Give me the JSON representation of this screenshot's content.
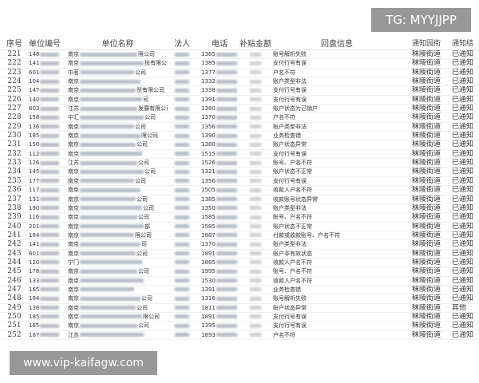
{
  "watermarks": {
    "tg": "TG: MYYJJPP",
    "site": "www.vip-kaifagw.com"
  },
  "headers": {
    "seq": "序号",
    "code": "单位编号",
    "name": "单位名称",
    "rep": "法人",
    "phone": "电话",
    "amount": "补贴金额",
    "info": "回盘信息",
    "street": "通知园街",
    "result": "通知结"
  },
  "rows": [
    {
      "seq": "221",
      "code": "148",
      "name_prefix": "南京",
      "name_suffix": "限公司",
      "phone": "1385",
      "info": "账号解析失败",
      "street": "秣陵街道",
      "result": "已通知"
    },
    {
      "seq": "222",
      "code": "141",
      "name_prefix": "南京",
      "name_suffix": "技有限公司",
      "phone": "1385",
      "info": "支付行号有误",
      "street": "秣陵街道",
      "result": "已通知"
    },
    {
      "seq": "223",
      "code": "601",
      "name_prefix": "中茗",
      "name_suffix": "公司",
      "phone": "1377",
      "info": "户名不符",
      "street": "秣陵街道",
      "result": "已通知"
    },
    {
      "seq": "224",
      "code": "104",
      "name_prefix": "南京",
      "name_suffix": "",
      "phone": "1332",
      "info": "账户类型非法",
      "street": "秣陵街道",
      "result": "已通知"
    },
    {
      "seq": "225",
      "code": "147",
      "name_prefix": "南京",
      "name_suffix": "贸有限公司",
      "phone": "1338",
      "info": "支付行号有误",
      "street": "秣陵街道",
      "result": "已通知"
    },
    {
      "seq": "226",
      "code": "140",
      "name_prefix": "南京",
      "name_suffix": "司",
      "phone": "1391",
      "info": "支付行号有误",
      "street": "秣陵街道",
      "result": "已通知"
    },
    {
      "seq": "227",
      "code": "603",
      "name_prefix": "江苏",
      "name_suffix": "发展有限公司",
      "phone": "1380",
      "info": "账户状态为已销户",
      "street": "秣陵街道",
      "result": "已通知"
    },
    {
      "seq": "228",
      "code": "158",
      "name_prefix": "中汇",
      "name_suffix": "公司",
      "phone": "1370",
      "info": "户名不符",
      "street": "秣陵街道",
      "result": "已通知"
    },
    {
      "seq": "229",
      "code": "136",
      "name_prefix": "南京",
      "name_suffix": "公司",
      "phone": "1356",
      "info": "账户类型非法",
      "street": "秣陵街道",
      "result": "已通知"
    },
    {
      "seq": "230",
      "code": "185",
      "name_prefix": "南京",
      "name_suffix": "限公司",
      "phone": "1390",
      "info": "业务检查错",
      "street": "秣陵街道",
      "result": "已通知"
    },
    {
      "seq": "231",
      "code": "150",
      "name_prefix": "南京",
      "name_suffix": "公司",
      "phone": "1380",
      "info": "账户状态异常",
      "street": "秣陵街道",
      "result": "已通知"
    },
    {
      "seq": "232",
      "code": "112",
      "name_prefix": "南京",
      "name_suffix": "",
      "phone": "1515",
      "info": "支付行号有误",
      "street": "秣陵街道",
      "result": "已通知"
    },
    {
      "seq": "233",
      "code": "126",
      "name_prefix": "江苏",
      "name_suffix": "公司",
      "phone": "1526",
      "info": "账号、户名不符",
      "street": "秣陵街道",
      "result": "已通知"
    },
    {
      "seq": "234",
      "code": "145",
      "name_prefix": "南京",
      "name_suffix": "公司",
      "phone": "1321",
      "info": "账户状态不正常",
      "street": "秣陵街道",
      "result": "已通知"
    },
    {
      "seq": "235",
      "code": "177",
      "name_prefix": "南京",
      "name_suffix": "公司",
      "phone": "1356",
      "info": "支付行号有误",
      "street": "秣陵街道",
      "result": "已通知"
    },
    {
      "seq": "236",
      "code": "117",
      "name_prefix": "南京",
      "name_suffix": "",
      "phone": "1505",
      "info": "收款人户名不符",
      "street": "秣陵街道",
      "result": "已通知"
    },
    {
      "seq": "237",
      "code": "131",
      "name_prefix": "南京",
      "name_suffix": "公司",
      "phone": "1385",
      "info": "收款账号状态异常",
      "street": "秣陵街道",
      "result": "已通知"
    },
    {
      "seq": "238",
      "code": "190",
      "name_prefix": "南京",
      "name_suffix": "公司",
      "phone": "1350",
      "info": "账户类型非法",
      "street": "秣陵街道",
      "result": "已通知"
    },
    {
      "seq": "239",
      "code": "116",
      "name_prefix": "南京",
      "name_suffix": "公司",
      "phone": "1585",
      "info": "账号、户名不符",
      "street": "秣陵街道",
      "result": "已通知"
    },
    {
      "seq": "240",
      "code": "201",
      "name_prefix": "南京",
      "name_suffix": "部",
      "phone": "1585",
      "info": "账户状态不正常",
      "street": "秣陵街道",
      "result": "已通知"
    },
    {
      "seq": "241",
      "code": "184",
      "name_prefix": "南京",
      "name_suffix": "限公司",
      "phone": "1887",
      "info": "付款或收款账号、户名不符",
      "street": "秣陵街道",
      "result": "已通知"
    },
    {
      "seq": "242",
      "code": "141",
      "name_prefix": "南京",
      "name_suffix": "司",
      "phone": "1370",
      "info": "账户类型非法",
      "street": "秣陵街道",
      "result": "已通知"
    },
    {
      "seq": "243",
      "code": "601",
      "name_prefix": "南京",
      "name_suffix": "公司",
      "phone": "1891",
      "info": "账户非有效状态",
      "street": "秣陵街道",
      "result": "已通知"
    },
    {
      "seq": "244",
      "code": "120",
      "name_prefix": "宁门",
      "name_suffix": "",
      "phone": "1885",
      "info": "收款人户名不符",
      "street": "秣陵街道",
      "result": "已通知"
    },
    {
      "seq": "245",
      "code": "178",
      "name_prefix": "南京",
      "name_suffix": "公司",
      "phone": "1995",
      "info": "账号、户名不符",
      "street": "秣陵街道",
      "result": "已通知"
    },
    {
      "seq": "246",
      "code": "133",
      "name_prefix": "南京",
      "name_suffix": "",
      "phone": "1530",
      "info": "收款人户名不符",
      "street": "秣陵街道",
      "result": "已通知"
    },
    {
      "seq": "247",
      "code": "165",
      "name_prefix": "南京",
      "name_suffix": "",
      "phone": "1391",
      "info": "业务检查错",
      "street": "秣陵街道",
      "result": "已通知"
    },
    {
      "seq": "248",
      "code": "184",
      "name_prefix": "南京",
      "name_suffix": "公司",
      "phone": "1316",
      "info": "账号解析失败",
      "street": "秣陵街道",
      "result": "已通知"
    },
    {
      "seq": "249",
      "code": "136",
      "name_prefix": "南京",
      "name_suffix": "公司",
      "phone": "1811",
      "info": "账户状态异常",
      "street": "秣陵街道",
      "result": "其他"
    },
    {
      "seq": "250",
      "code": "185",
      "name_prefix": "南京",
      "name_suffix": "限公司",
      "phone": "1891",
      "info": "支付行号有误",
      "street": "秣陵街道",
      "result": "已通知"
    },
    {
      "seq": "251",
      "code": "165",
      "name_prefix": "南京",
      "name_suffix": "公司",
      "phone": "1395",
      "info": "支付行号有误",
      "street": "秣陵街道",
      "result": "已通知"
    },
    {
      "seq": "252",
      "code": "187",
      "name_prefix": "江苏",
      "name_suffix": "",
      "phone": "1893",
      "info": "户名不符",
      "street": "秣陵街道",
      "result": "已通知"
    }
  ]
}
